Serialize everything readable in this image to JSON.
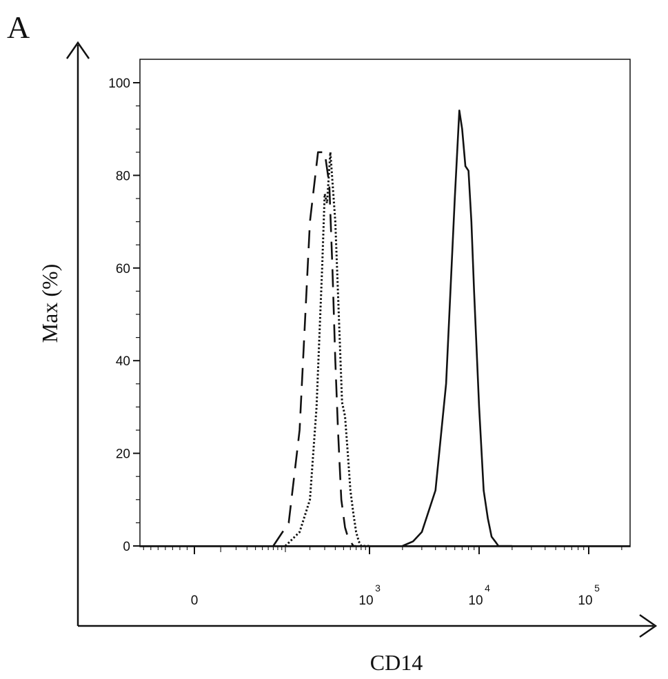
{
  "chart_data": {
    "type": "line",
    "panel_label": "A",
    "xlabel": "CD14",
    "ylabel": "Max (%)",
    "x_scale": "biexponential (log above 10^3)",
    "xlim": [
      -150,
      200000
    ],
    "ylim": [
      0,
      100
    ],
    "y_ticks": [
      0,
      20,
      40,
      60,
      80,
      100
    ],
    "x_ticks": [
      {
        "value": 0,
        "label": "0",
        "exp": ""
      },
      {
        "value": 1000,
        "label": "10",
        "exp": "3"
      },
      {
        "value": 10000,
        "label": "10",
        "exp": "4"
      },
      {
        "value": 100000,
        "label": "10",
        "exp": "5"
      }
    ],
    "grid": false,
    "legend": "none",
    "series": [
      {
        "style": "dashed",
        "x": [
          70,
          110,
          150,
          200,
          250,
          300,
          340,
          370,
          400,
          430,
          470,
          520,
          560,
          600,
          650,
          700
        ],
        "y": [
          0,
          5,
          25,
          70,
          85,
          85,
          78,
          60,
          40,
          25,
          10,
          4,
          2,
          1,
          0,
          0
        ]
      },
      {
        "style": "dotted",
        "x": [
          100,
          150,
          200,
          240,
          280,
          300,
          320,
          350,
          400,
          450,
          480,
          520,
          560,
          600,
          650,
          700,
          750,
          800,
          1000
        ],
        "y": [
          0,
          3,
          10,
          30,
          60,
          76,
          74,
          85,
          70,
          45,
          31,
          28,
          20,
          12,
          7,
          3,
          1,
          0,
          0
        ]
      },
      {
        "style": "solid",
        "x": [
          2000,
          2500,
          3000,
          4000,
          5000,
          6000,
          6600,
          7000,
          7500,
          8000,
          8500,
          9000,
          10000,
          11000,
          12000,
          13000,
          14000,
          15000,
          17000,
          20000
        ],
        "y": [
          0,
          1,
          3,
          12,
          35,
          75,
          94,
          90,
          82,
          81,
          70,
          55,
          30,
          12,
          6,
          2,
          1,
          0,
          0,
          0
        ]
      }
    ]
  }
}
